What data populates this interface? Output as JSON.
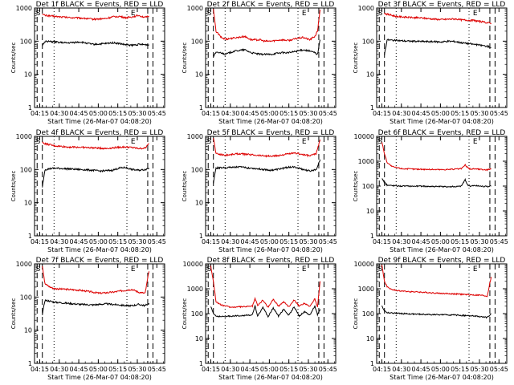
{
  "figure": {
    "series_names": [
      "BLACK = Events",
      "RED = LLD"
    ],
    "colors": {
      "events": "#000000",
      "lld": "#dd0000",
      "axes": "#000000",
      "background": "#ffffff"
    },
    "ylabel": "Counts/sec",
    "xlabel": "Start Time (26-Mar-07 04:08:20)",
    "xtick_labels": [
      "04:15",
      "04:30",
      "04:45",
      "05:00",
      "05:15",
      "05:30",
      "05:45"
    ],
    "ytick_labels_3": [
      "1",
      "10",
      "100",
      "1000"
    ],
    "ytick_labels_4": [
      "1",
      "10",
      "100",
      "1000",
      "10000"
    ],
    "markers": [
      "S",
      "E"
    ]
  },
  "chart_data": [
    {
      "type": "line",
      "title": "Det 1f BLACK = Events, RED = LLD",
      "x_unit": "minutes after 04:08:20",
      "xlim": [
        0,
        100
      ],
      "ylim": [
        1,
        1000
      ],
      "yscale": "log",
      "x": [
        6,
        8,
        15,
        25,
        35,
        45,
        50,
        55,
        60,
        65,
        70,
        75,
        80,
        85,
        88
      ],
      "series": [
        {
          "name": "RED = LLD",
          "values": [
            650,
            600,
            560,
            520,
            500,
            460,
            470,
            480,
            540,
            560,
            510,
            540,
            600,
            520,
            560
          ]
        },
        {
          "name": "BLACK = Events",
          "values": [
            75,
            100,
            95,
            88,
            95,
            80,
            82,
            85,
            90,
            85,
            78,
            75,
            80,
            78,
            78
          ]
        }
      ],
      "dashed_x": [
        2,
        6,
        87,
        91
      ],
      "dotted_x": [
        15,
        71
      ],
      "S_x": 1,
      "E_x": 74
    },
    {
      "type": "line",
      "title": "Det 2f BLACK = Events, RED = LLD",
      "x_unit": "minutes after 04:08:20",
      "xlim": [
        0,
        100
      ],
      "ylim": [
        1,
        1000
      ],
      "yscale": "log",
      "x": [
        6,
        8,
        12,
        15,
        22,
        30,
        35,
        42,
        45,
        50,
        58,
        64,
        70,
        75,
        80,
        84,
        86,
        88
      ],
      "series": [
        {
          "name": "RED = LLD",
          "values": [
            900,
            200,
            130,
            115,
            125,
            140,
            110,
            110,
            100,
            100,
            110,
            105,
            120,
            130,
            110,
            140,
            200,
            900
          ]
        },
        {
          "name": "BLACK = Events",
          "values": [
            35,
            45,
            45,
            40,
            50,
            55,
            45,
            40,
            40,
            40,
            45,
            45,
            50,
            55,
            50,
            45,
            40,
            110
          ]
        }
      ],
      "dashed_x": [
        2,
        6,
        87,
        91
      ],
      "dotted_x": [
        15,
        71
      ],
      "S_x": 1,
      "E_x": 74
    },
    {
      "type": "line",
      "title": "Det 3f BLACK = Events, RED = LLD",
      "x_unit": "minutes after 04:08:20",
      "xlim": [
        0,
        100
      ],
      "ylim": [
        1,
        1000
      ],
      "yscale": "log",
      "x": [
        6,
        8,
        15,
        25,
        35,
        45,
        50,
        55,
        60,
        65,
        70,
        75,
        80,
        85,
        88
      ],
      "series": [
        {
          "name": "RED = LLD",
          "values": [
            700,
            650,
            560,
            520,
            500,
            460,
            450,
            460,
            470,
            440,
            430,
            420,
            390,
            360,
            350
          ]
        },
        {
          "name": "BLACK = Events",
          "values": [
            40,
            110,
            105,
            100,
            98,
            96,
            95,
            100,
            98,
            90,
            85,
            80,
            75,
            70,
            65
          ]
        }
      ],
      "dashed_x": [
        2,
        6,
        87,
        91
      ],
      "dotted_x": [
        15,
        71
      ],
      "S_x": 1,
      "E_x": 74
    },
    {
      "type": "line",
      "title": "Det 4f BLACK = Events, RED = LLD",
      "x_unit": "minutes after 04:08:20",
      "xlim": [
        0,
        100
      ],
      "ylim": [
        1,
        1000
      ],
      "yscale": "log",
      "x": [
        6,
        8,
        15,
        25,
        35,
        45,
        50,
        55,
        60,
        65,
        70,
        75,
        80,
        85,
        88
      ],
      "series": [
        {
          "name": "RED = LLD",
          "values": [
            650,
            600,
            520,
            480,
            470,
            450,
            440,
            430,
            450,
            470,
            480,
            460,
            430,
            440,
            600
          ]
        },
        {
          "name": "BLACK = Events",
          "values": [
            30,
            100,
            110,
            105,
            100,
            95,
            90,
            92,
            95,
            110,
            115,
            100,
            95,
            100,
            110
          ]
        }
      ],
      "dashed_x": [
        2,
        6,
        87,
        91
      ],
      "dotted_x": [
        15,
        71
      ],
      "S_x": 1,
      "E_x": 74
    },
    {
      "type": "line",
      "title": "Det 5f BLACK = Events, RED = LLD",
      "x_unit": "minutes after 04:08:20",
      "xlim": [
        0,
        100
      ],
      "ylim": [
        1,
        1000
      ],
      "yscale": "log",
      "x": [
        6,
        8,
        15,
        25,
        35,
        45,
        50,
        55,
        60,
        65,
        70,
        75,
        80,
        85,
        88
      ],
      "series": [
        {
          "name": "RED = LLD",
          "values": [
            900,
            300,
            270,
            300,
            280,
            260,
            250,
            260,
            280,
            300,
            310,
            280,
            260,
            300,
            800
          ]
        },
        {
          "name": "BLACK = Events",
          "values": [
            40,
            110,
            115,
            120,
            110,
            100,
            95,
            100,
            110,
            120,
            115,
            100,
            90,
            100,
            200
          ]
        }
      ],
      "dashed_x": [
        2,
        6,
        87,
        91
      ],
      "dotted_x": [
        15,
        71
      ],
      "S_x": 1,
      "E_x": 74
    },
    {
      "type": "line",
      "title": "Det 6f BLACK = Events, RED = LLD",
      "x_unit": "minutes after 04:08:20",
      "xlim": [
        0,
        100
      ],
      "ylim": [
        1,
        10000
      ],
      "yscale": "log",
      "x": [
        4,
        6,
        8,
        12,
        20,
        30,
        40,
        50,
        60,
        65,
        68,
        70,
        72,
        75,
        80,
        85,
        88
      ],
      "series": [
        {
          "name": "RED = LLD",
          "values": [
            6000,
            2000,
            900,
            600,
            500,
            480,
            470,
            460,
            480,
            500,
            700,
            550,
            480,
            500,
            470,
            450,
            500
          ]
        },
        {
          "name": "BLACK = Events",
          "values": [
            200,
            140,
            110,
            105,
            100,
            100,
            98,
            95,
            95,
            100,
            180,
            110,
            100,
            105,
            100,
            95,
            100
          ]
        }
      ],
      "dashed_x": [
        2,
        6,
        87,
        91
      ],
      "dotted_x": [
        15,
        71
      ],
      "S_x": 1,
      "E_x": 74
    },
    {
      "type": "line",
      "title": "Det 7f BLACK = Events, RED = LLD",
      "x_unit": "minutes after 04:08:20",
      "xlim": [
        0,
        100
      ],
      "ylim": [
        1,
        1000
      ],
      "yscale": "log",
      "x": [
        6,
        8,
        12,
        15,
        25,
        35,
        45,
        50,
        55,
        60,
        65,
        70,
        75,
        80,
        85,
        88
      ],
      "series": [
        {
          "name": "RED = LLD",
          "values": [
            900,
            250,
            200,
            180,
            170,
            160,
            140,
            130,
            135,
            140,
            150,
            160,
            170,
            140,
            130,
            600
          ]
        },
        {
          "name": "BLACK = Events",
          "values": [
            30,
            80,
            75,
            70,
            65,
            60,
            58,
            60,
            62,
            60,
            58,
            55,
            55,
            60,
            55,
            65
          ]
        }
      ],
      "dashed_x": [
        2,
        6,
        87,
        91
      ],
      "dotted_x": [
        15,
        71
      ],
      "S_x": 1,
      "E_x": 74
    },
    {
      "type": "line",
      "title": "Det 8f BLACK = Events, RED = LLD",
      "x_unit": "minutes after 04:08:20",
      "xlim": [
        0,
        100
      ],
      "ylim": [
        1,
        10000
      ],
      "yscale": "log",
      "x": [
        4,
        6,
        8,
        12,
        20,
        30,
        36,
        38,
        40,
        44,
        48,
        52,
        56,
        60,
        64,
        68,
        72,
        76,
        80,
        84,
        86,
        88
      ],
      "series": [
        {
          "name": "RED = LLD",
          "values": [
            8000,
            2000,
            300,
            220,
            180,
            190,
            200,
            400,
            210,
            350,
            180,
            380,
            200,
            300,
            190,
            360,
            200,
            260,
            190,
            400,
            180,
            2000
          ]
        },
        {
          "name": "BLACK = Events",
          "values": [
            200,
            100,
            80,
            75,
            80,
            85,
            90,
            200,
            80,
            180,
            75,
            170,
            80,
            150,
            85,
            190,
            80,
            120,
            85,
            200,
            90,
            150
          ]
        }
      ],
      "dashed_x": [
        2,
        6,
        87,
        91
      ],
      "dotted_x": [
        15,
        71
      ],
      "S_x": 1,
      "E_x": 74
    },
    {
      "type": "line",
      "title": "Det 9f BLACK = Events, RED = LLD",
      "x_unit": "minutes after 04:08:20",
      "xlim": [
        0,
        100
      ],
      "ylim": [
        1,
        10000
      ],
      "yscale": "log",
      "x": [
        4,
        6,
        8,
        12,
        20,
        30,
        40,
        50,
        60,
        65,
        70,
        75,
        80,
        85,
        88
      ],
      "series": [
        {
          "name": "RED = LLD",
          "values": [
            9000,
            2000,
            1200,
            900,
            800,
            750,
            700,
            650,
            620,
            600,
            580,
            560,
            550,
            500,
            3000
          ]
        },
        {
          "name": "BLACK = Events",
          "values": [
            200,
            130,
            110,
            105,
            100,
            95,
            92,
            90,
            88,
            85,
            82,
            80,
            75,
            70,
            100
          ]
        }
      ],
      "dashed_x": [
        2,
        6,
        87,
        91
      ],
      "dotted_x": [
        15,
        71
      ],
      "S_x": 1,
      "E_x": 74
    }
  ]
}
